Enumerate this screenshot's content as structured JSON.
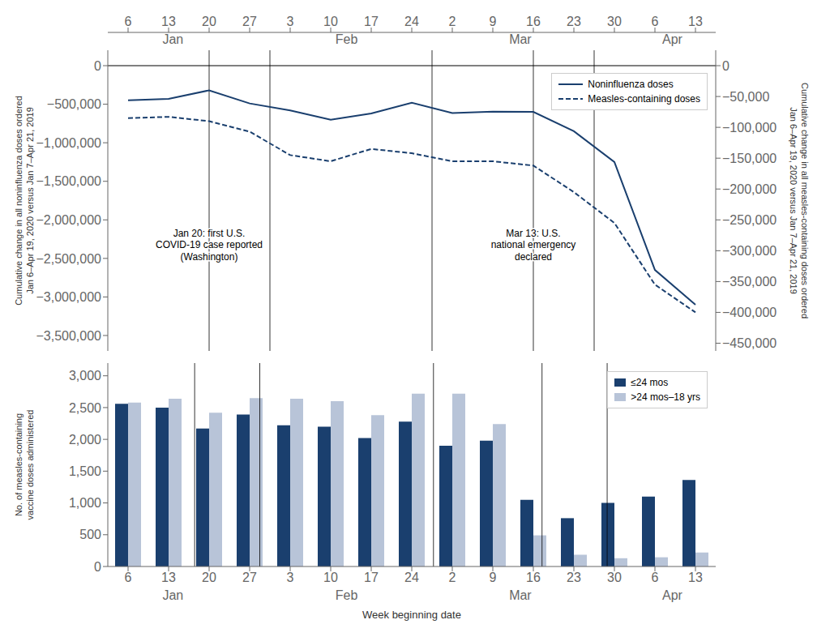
{
  "chart_data": [
    {
      "type": "line",
      "categories": [
        "6",
        "13",
        "20",
        "27",
        "3",
        "10",
        "17",
        "24",
        "2",
        "9",
        "16",
        "23",
        "30",
        "6",
        "13"
      ],
      "groups": [
        {
          "label": "Jan",
          "categories": [
            "6",
            "13",
            "20",
            "27"
          ]
        },
        {
          "label": "Feb",
          "categories": [
            "3",
            "10",
            "17",
            "24"
          ]
        },
        {
          "label": "Mar",
          "categories": [
            "2",
            "9",
            "16",
            "23"
          ]
        },
        {
          "label": "Apr",
          "categories": [
            "30",
            "6",
            "13"
          ]
        }
      ],
      "ylabel": "Cumulative change in all noninfluenza doses ordered\nJan 6–Apr 19, 2020 versus Jan 7–Apr 21, 2019",
      "y2label": "Cumulative change in all measles-containing doses ordered\nJan 6–Apr 19, 2020 versus Jan 7–Apr 21, 2019",
      "ylim": [
        -3700000,
        200000
      ],
      "yticks": [
        0,
        {
          "value": -500000,
          "label": "−500,000"
        },
        {
          "value": -1000000,
          "label": "−1,000,000"
        },
        {
          "value": -1500000,
          "label": "−1,500,000"
        },
        {
          "value": -2000000,
          "label": "−2,000,000"
        },
        {
          "value": -2500000,
          "label": "−2,500,000"
        },
        {
          "value": -3000000,
          "label": "−3,000,000"
        },
        {
          "value": -3500000,
          "label": "−3,500,000"
        }
      ],
      "y2lim": [
        -462500,
        25000
      ],
      "y2ticks": [
        0,
        {
          "value": -50000,
          "label": "−50,000"
        },
        {
          "value": -100000,
          "label": "−100,000"
        },
        {
          "value": -150000,
          "label": "−150,000"
        },
        {
          "value": -200000,
          "label": "−200,000"
        },
        {
          "value": -250000,
          "label": "−250,000"
        },
        {
          "value": -300000,
          "label": "−300,000"
        },
        {
          "value": -350000,
          "label": "−350,000"
        },
        {
          "value": -400000,
          "label": "−400,000"
        },
        {
          "value": -450000,
          "label": "−450,000"
        }
      ],
      "series": [
        {
          "name": "Noninfluenza doses",
          "color": "#1a3f6e",
          "line_style": "solid",
          "axis": "y",
          "values": [
            -450000,
            -430000,
            -320000,
            -490000,
            -580000,
            -700000,
            -620000,
            -480000,
            -615000,
            -595000,
            -600000,
            -850000,
            -1250000,
            -2650000,
            -3100000
          ]
        },
        {
          "name": "Measles-containing doses",
          "color": "#1a3f6e",
          "line_style": "dashed",
          "axis": "y2",
          "values": [
            -85000,
            -83000,
            -90000,
            -107000,
            -145000,
            -155000,
            -135000,
            -142000,
            -155000,
            -155000,
            -162000,
            -205000,
            -255000,
            -355000,
            -400000
          ]
        }
      ],
      "annotations": [
        {
          "text": "Jan 20: first U.S.\nCOVID-19 case reported\n(Washington)",
          "x_index": 2
        },
        {
          "text": "Mar 13: U.S.\nnational emergency\ndeclared",
          "x_index": 10
        }
      ],
      "legend": "upper right",
      "grid": false
    },
    {
      "type": "bar",
      "categories": [
        "6",
        "13",
        "20",
        "27",
        "3",
        "10",
        "17",
        "24",
        "2",
        "9",
        "16",
        "23",
        "30",
        "6",
        "13"
      ],
      "groups": [
        {
          "label": "Jan",
          "categories": [
            "6",
            "13",
            "20",
            "27"
          ]
        },
        {
          "label": "Feb",
          "categories": [
            "3",
            "10",
            "17",
            "24"
          ]
        },
        {
          "label": "Mar",
          "categories": [
            "2",
            "9",
            "16",
            "23"
          ]
        },
        {
          "label": "Apr",
          "categories": [
            "30",
            "6",
            "13"
          ]
        }
      ],
      "xlabel": "Week beginning date",
      "ylabel": "No. of measles-containing\nvaccine doses administered",
      "ylim": [
        0,
        3200
      ],
      "yticks": [
        0,
        500,
        {
          "value": 1000,
          "label": "1,000"
        },
        {
          "value": 1500,
          "label": "1,500"
        },
        {
          "value": 2000,
          "label": "2,000"
        },
        {
          "value": 2500,
          "label": "2,500"
        },
        {
          "value": 3000,
          "label": "3,000"
        }
      ],
      "series": [
        {
          "name": "≤24 mos",
          "color": "#1a3f6e",
          "values": [
            2560,
            2500,
            2170,
            2390,
            2220,
            2200,
            2020,
            2280,
            1900,
            1980,
            1050,
            760,
            1000,
            1100,
            1360
          ]
        },
        {
          "name": ">24 mos–18 yrs",
          "color": "#b8c4d8",
          "values": [
            2580,
            2640,
            2420,
            2650,
            2640,
            2600,
            2380,
            2720,
            2720,
            2240,
            490,
            185,
            130,
            145,
            220
          ]
        }
      ],
      "legend": "upper right",
      "grid": false
    }
  ]
}
